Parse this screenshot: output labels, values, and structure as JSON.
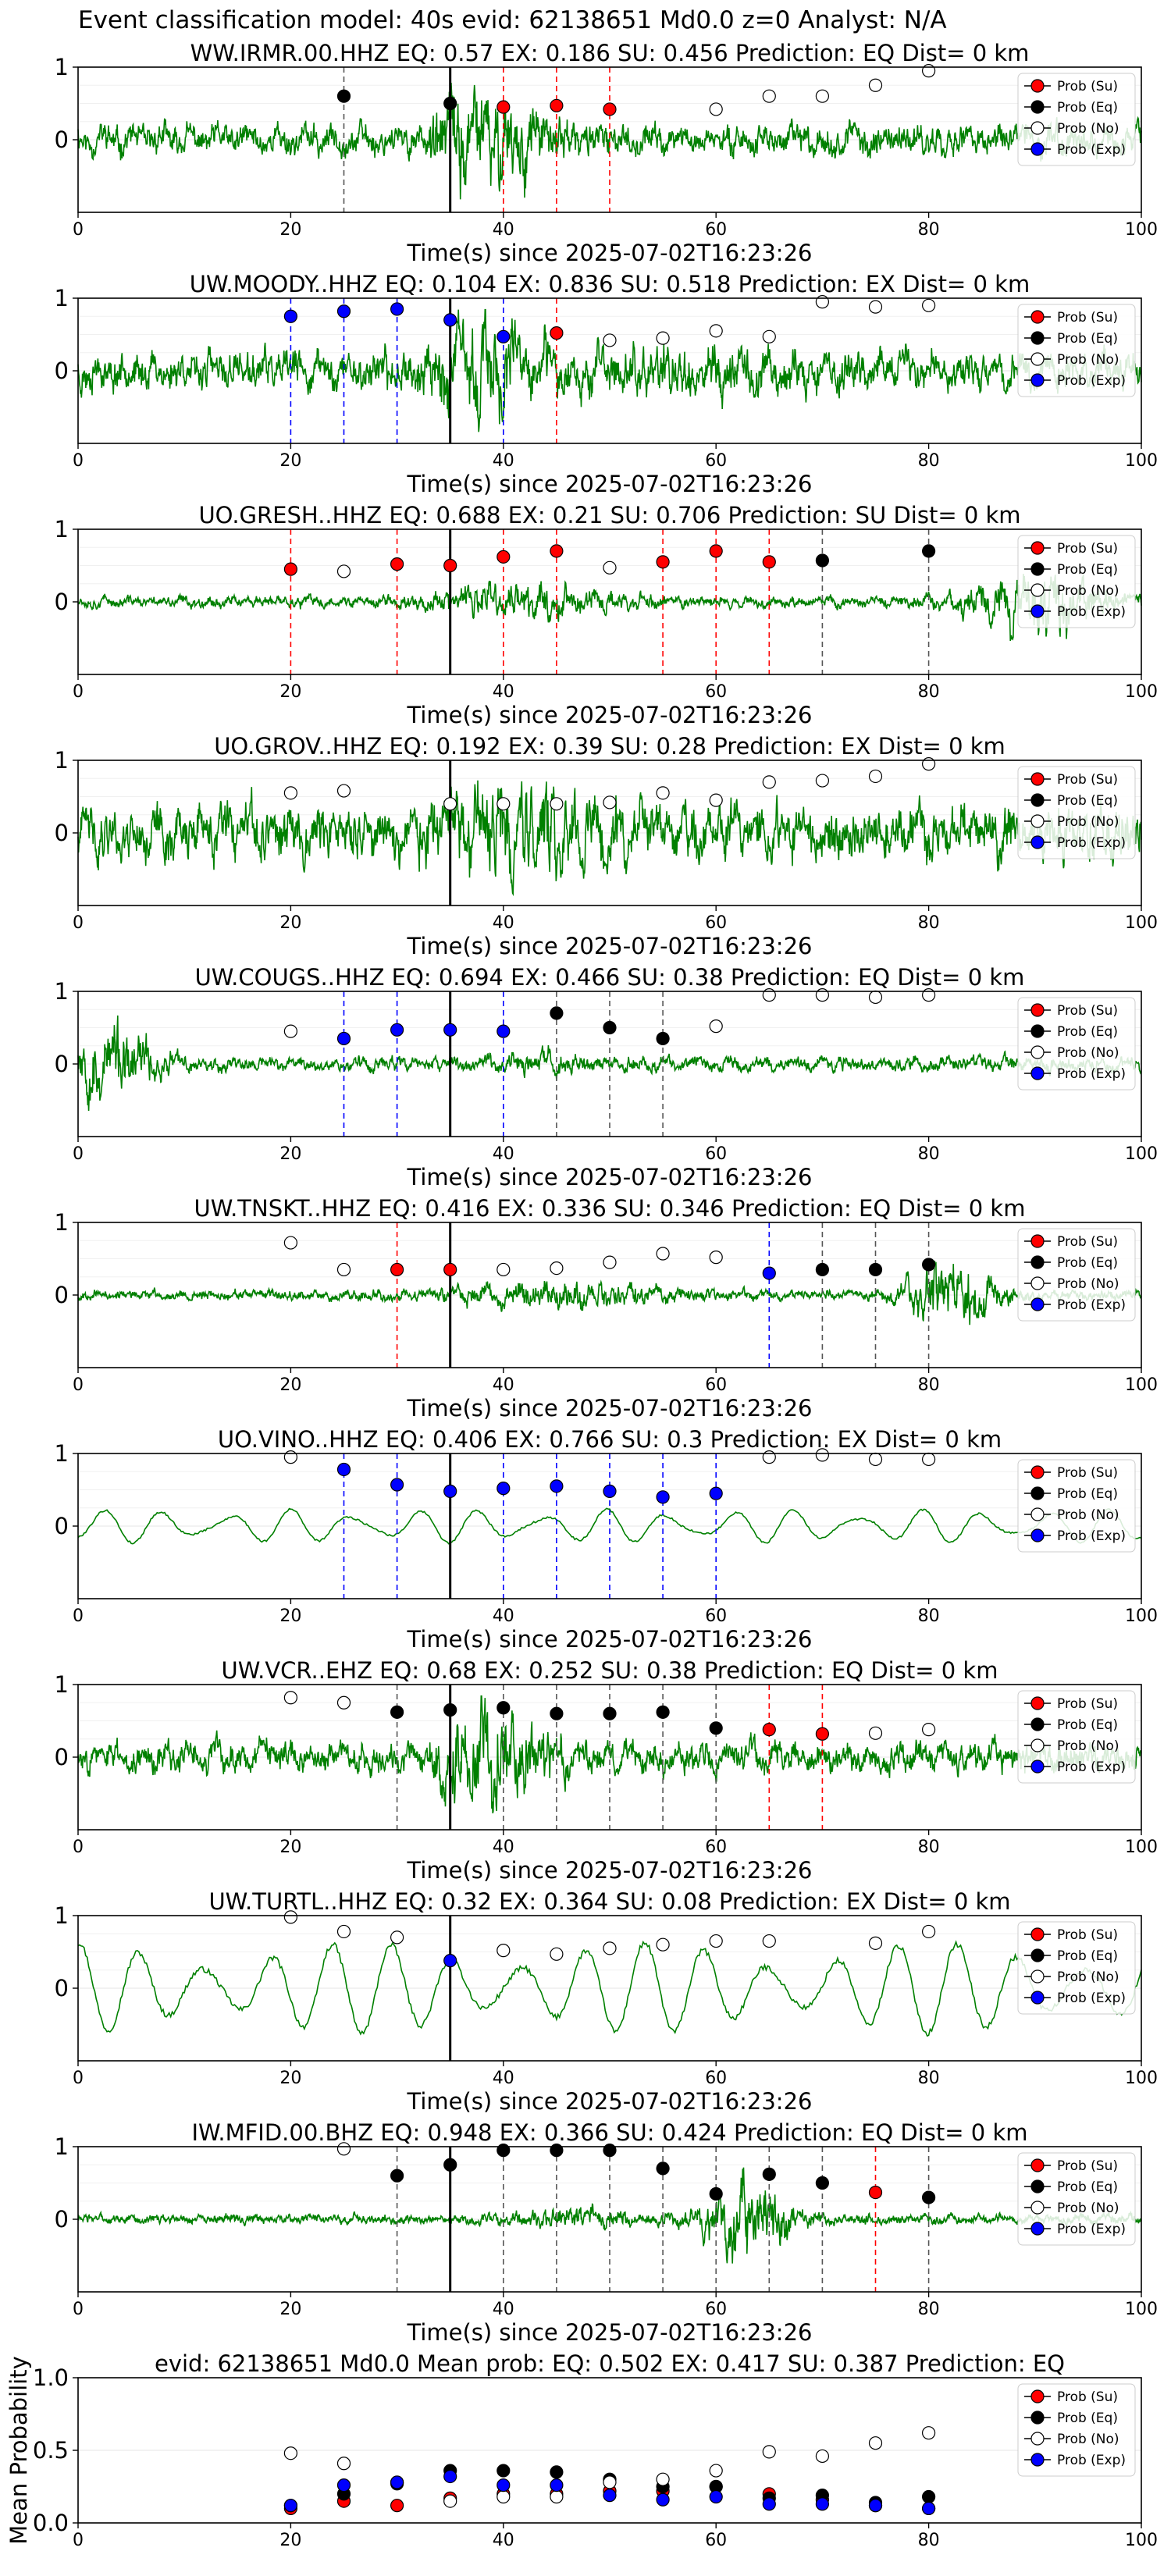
{
  "figure_title": "Event classification model: 40s evid: 62138651 Md0.0 z=0 Analyst: N/A",
  "colors": {
    "waveform": "#008000",
    "su": "#ff0000",
    "eq": "#000000",
    "no": "#ffffff",
    "exp": "#0000ff",
    "pick_line": "#000000"
  },
  "chart_data": [
    {
      "type": "line",
      "title": "WW.IRMR.00.HHZ   EQ: 0.57  EX: 0.186  SU: 0.456   Prediction: EQ    Dist= 0 km",
      "xlabel": "Time(s) since 2025-07-02T16:23:26",
      "xlim": [
        0,
        100
      ],
      "ylim": [
        -1,
        1
      ],
      "x_ticks": [
        "0",
        "20",
        "40",
        "60",
        "80",
        "100"
      ],
      "y_ticks": [
        "0",
        "1"
      ],
      "waveform_style": "mixed",
      "seed": 11,
      "pick_time": 35,
      "points": [
        {
          "t": 25,
          "p": 0.6,
          "cls": "eq"
        },
        {
          "t": 35,
          "p": 0.5,
          "cls": "eq"
        },
        {
          "t": 40,
          "p": 0.45,
          "cls": "su"
        },
        {
          "t": 45,
          "p": 0.47,
          "cls": "su"
        },
        {
          "t": 50,
          "p": 0.42,
          "cls": "su"
        },
        {
          "t": 60,
          "p": 0.42,
          "cls": "no"
        },
        {
          "t": 65,
          "p": 0.6,
          "cls": "no"
        },
        {
          "t": 70,
          "p": 0.6,
          "cls": "no"
        },
        {
          "t": 75,
          "p": 0.75,
          "cls": "no"
        },
        {
          "t": 80,
          "p": 0.95,
          "cls": "no"
        }
      ],
      "legend": [
        "Prob (Su)",
        "Prob (Eq)",
        "Prob (No)",
        "Prob (Exp)"
      ]
    },
    {
      "type": "line",
      "title": "UW.MOODY..HHZ   EQ: 0.104  EX: 0.836  SU: 0.518   Prediction: EX    Dist= 0 km",
      "xlabel": "Time(s) since 2025-07-02T16:23:26",
      "xlim": [
        0,
        100
      ],
      "ylim": [
        -1,
        1
      ],
      "x_ticks": [
        "0",
        "20",
        "40",
        "60",
        "80",
        "100"
      ],
      "y_ticks": [
        "0",
        "1"
      ],
      "waveform_style": "low",
      "seed": 23,
      "pick_time": 35,
      "points": [
        {
          "t": 20,
          "p": 0.75,
          "cls": "exp"
        },
        {
          "t": 25,
          "p": 0.82,
          "cls": "exp"
        },
        {
          "t": 30,
          "p": 0.85,
          "cls": "exp"
        },
        {
          "t": 35,
          "p": 0.7,
          "cls": "exp"
        },
        {
          "t": 40,
          "p": 0.47,
          "cls": "exp"
        },
        {
          "t": 45,
          "p": 0.52,
          "cls": "su"
        },
        {
          "t": 50,
          "p": 0.42,
          "cls": "no"
        },
        {
          "t": 55,
          "p": 0.45,
          "cls": "no"
        },
        {
          "t": 60,
          "p": 0.55,
          "cls": "no"
        },
        {
          "t": 65,
          "p": 0.47,
          "cls": "no"
        },
        {
          "t": 70,
          "p": 0.95,
          "cls": "no"
        },
        {
          "t": 75,
          "p": 0.88,
          "cls": "no"
        },
        {
          "t": 80,
          "p": 0.9,
          "cls": "no"
        }
      ],
      "legend": [
        "Prob (Su)",
        "Prob (Eq)",
        "Prob (No)",
        "Prob (Exp)"
      ]
    },
    {
      "type": "line",
      "title": "UO.GRESH..HHZ   EQ: 0.688  EX: 0.21  SU: 0.706   Prediction: SU    Dist= 0 km",
      "xlabel": "Time(s) since 2025-07-02T16:23:26",
      "xlim": [
        0,
        100
      ],
      "ylim": [
        -1,
        1
      ],
      "x_ticks": [
        "0",
        "20",
        "40",
        "60",
        "80",
        "100"
      ],
      "y_ticks": [
        "0",
        "1"
      ],
      "waveform_style": "noise",
      "seed": 37,
      "pick_time": 35,
      "points": [
        {
          "t": 20,
          "p": 0.45,
          "cls": "su"
        },
        {
          "t": 25,
          "p": 0.42,
          "cls": "no"
        },
        {
          "t": 30,
          "p": 0.52,
          "cls": "su"
        },
        {
          "t": 35,
          "p": 0.5,
          "cls": "su"
        },
        {
          "t": 40,
          "p": 0.62,
          "cls": "su"
        },
        {
          "t": 45,
          "p": 0.7,
          "cls": "su"
        },
        {
          "t": 50,
          "p": 0.47,
          "cls": "no"
        },
        {
          "t": 55,
          "p": 0.55,
          "cls": "su"
        },
        {
          "t": 60,
          "p": 0.7,
          "cls": "su"
        },
        {
          "t": 65,
          "p": 0.55,
          "cls": "su"
        },
        {
          "t": 70,
          "p": 0.57,
          "cls": "eq"
        },
        {
          "t": 80,
          "p": 0.7,
          "cls": "eq"
        }
      ],
      "legend": [
        "Prob (Su)",
        "Prob (Eq)",
        "Prob (No)",
        "Prob (Exp)"
      ]
    },
    {
      "type": "line",
      "title": "UO.GROV..HHZ   EQ: 0.192  EX: 0.39  SU: 0.28   Prediction: EX    Dist= 0 km",
      "xlabel": "Time(s) since 2025-07-02T16:23:26",
      "xlim": [
        0,
        100
      ],
      "ylim": [
        -1,
        1
      ],
      "x_ticks": [
        "0",
        "20",
        "40",
        "60",
        "80",
        "100"
      ],
      "y_ticks": [
        "0",
        "1"
      ],
      "waveform_style": "dense",
      "seed": 41,
      "pick_time": 35,
      "points": [
        {
          "t": 20,
          "p": 0.55,
          "cls": "no"
        },
        {
          "t": 25,
          "p": 0.58,
          "cls": "no"
        },
        {
          "t": 35,
          "p": 0.4,
          "cls": "no"
        },
        {
          "t": 40,
          "p": 0.4,
          "cls": "no"
        },
        {
          "t": 45,
          "p": 0.4,
          "cls": "no"
        },
        {
          "t": 50,
          "p": 0.42,
          "cls": "no"
        },
        {
          "t": 55,
          "p": 0.55,
          "cls": "no"
        },
        {
          "t": 60,
          "p": 0.45,
          "cls": "no"
        },
        {
          "t": 65,
          "p": 0.7,
          "cls": "no"
        },
        {
          "t": 70,
          "p": 0.72,
          "cls": "no"
        },
        {
          "t": 75,
          "p": 0.78,
          "cls": "no"
        },
        {
          "t": 80,
          "p": 0.95,
          "cls": "no"
        }
      ],
      "legend": [
        "Prob (Su)",
        "Prob (Eq)",
        "Prob (No)",
        "Prob (Exp)"
      ]
    },
    {
      "type": "line",
      "title": "UW.COUGS..HHZ   EQ: 0.694  EX: 0.466  SU: 0.38   Prediction: EQ    Dist= 0 km",
      "xlabel": "Time(s) since 2025-07-02T16:23:26",
      "xlim": [
        0,
        100
      ],
      "ylim": [
        -1,
        1
      ],
      "x_ticks": [
        "0",
        "20",
        "40",
        "60",
        "80",
        "100"
      ],
      "y_ticks": [
        "0",
        "1"
      ],
      "waveform_style": "early",
      "seed": 53,
      "pick_time": 35,
      "points": [
        {
          "t": 20,
          "p": 0.45,
          "cls": "no"
        },
        {
          "t": 25,
          "p": 0.35,
          "cls": "exp"
        },
        {
          "t": 30,
          "p": 0.47,
          "cls": "exp"
        },
        {
          "t": 35,
          "p": 0.47,
          "cls": "exp"
        },
        {
          "t": 40,
          "p": 0.45,
          "cls": "exp"
        },
        {
          "t": 45,
          "p": 0.7,
          "cls": "eq"
        },
        {
          "t": 50,
          "p": 0.5,
          "cls": "eq"
        },
        {
          "t": 55,
          "p": 0.35,
          "cls": "eq"
        },
        {
          "t": 60,
          "p": 0.52,
          "cls": "no"
        },
        {
          "t": 65,
          "p": 0.95,
          "cls": "no"
        },
        {
          "t": 70,
          "p": 0.95,
          "cls": "no"
        },
        {
          "t": 75,
          "p": 0.92,
          "cls": "no"
        },
        {
          "t": 80,
          "p": 0.95,
          "cls": "no"
        }
      ],
      "legend": [
        "Prob (Su)",
        "Prob (Eq)",
        "Prob (No)",
        "Prob (Exp)"
      ]
    },
    {
      "type": "line",
      "title": "UW.TNSKT..HHZ   EQ: 0.416  EX: 0.336  SU: 0.346   Prediction: EQ    Dist= 0 km",
      "xlabel": "Time(s) since 2025-07-02T16:23:26",
      "xlim": [
        0,
        100
      ],
      "ylim": [
        -1,
        1
      ],
      "x_ticks": [
        "0",
        "20",
        "40",
        "60",
        "80",
        "100"
      ],
      "y_ticks": [
        "0",
        "1"
      ],
      "waveform_style": "noise-late",
      "seed": 67,
      "pick_time": 35,
      "points": [
        {
          "t": 20,
          "p": 0.72,
          "cls": "no"
        },
        {
          "t": 25,
          "p": 0.35,
          "cls": "no"
        },
        {
          "t": 30,
          "p": 0.35,
          "cls": "su"
        },
        {
          "t": 35,
          "p": 0.35,
          "cls": "su"
        },
        {
          "t": 40,
          "p": 0.35,
          "cls": "no"
        },
        {
          "t": 45,
          "p": 0.37,
          "cls": "no"
        },
        {
          "t": 50,
          "p": 0.45,
          "cls": "no"
        },
        {
          "t": 55,
          "p": 0.57,
          "cls": "no"
        },
        {
          "t": 60,
          "p": 0.52,
          "cls": "no"
        },
        {
          "t": 65,
          "p": 0.3,
          "cls": "exp"
        },
        {
          "t": 70,
          "p": 0.35,
          "cls": "eq"
        },
        {
          "t": 75,
          "p": 0.35,
          "cls": "eq"
        },
        {
          "t": 80,
          "p": 0.42,
          "cls": "eq"
        }
      ],
      "legend": [
        "Prob (Su)",
        "Prob (Eq)",
        "Prob (No)",
        "Prob (Exp)"
      ]
    },
    {
      "type": "line",
      "title": "UO.VINO..HHZ   EQ: 0.406  EX: 0.766  SU: 0.3   Prediction: EX    Dist= 0 km",
      "xlabel": "Time(s) since 2025-07-02T16:23:26",
      "xlim": [
        0,
        100
      ],
      "ylim": [
        -1,
        1
      ],
      "x_ticks": [
        "0",
        "20",
        "40",
        "60",
        "80",
        "100"
      ],
      "y_ticks": [
        "0",
        "1"
      ],
      "waveform_style": "smooth",
      "seed": 79,
      "pick_time": 35,
      "points": [
        {
          "t": 20,
          "p": 0.95,
          "cls": "no"
        },
        {
          "t": 25,
          "p": 0.78,
          "cls": "exp"
        },
        {
          "t": 30,
          "p": 0.57,
          "cls": "exp"
        },
        {
          "t": 35,
          "p": 0.48,
          "cls": "exp"
        },
        {
          "t": 40,
          "p": 0.52,
          "cls": "exp"
        },
        {
          "t": 45,
          "p": 0.55,
          "cls": "exp"
        },
        {
          "t": 50,
          "p": 0.48,
          "cls": "exp"
        },
        {
          "t": 55,
          "p": 0.4,
          "cls": "exp"
        },
        {
          "t": 60,
          "p": 0.45,
          "cls": "exp"
        },
        {
          "t": 65,
          "p": 0.95,
          "cls": "no"
        },
        {
          "t": 70,
          "p": 0.98,
          "cls": "no"
        },
        {
          "t": 75,
          "p": 0.92,
          "cls": "no"
        },
        {
          "t": 80,
          "p": 0.92,
          "cls": "no"
        }
      ],
      "legend": [
        "Prob (Su)",
        "Prob (Eq)",
        "Prob (No)",
        "Prob (Exp)"
      ]
    },
    {
      "type": "line",
      "title": "UW.VCR..EHZ   EQ: 0.68  EX: 0.252  SU: 0.38   Prediction: EQ    Dist= 0 km",
      "xlabel": "Time(s) since 2025-07-02T16:23:26",
      "xlim": [
        0,
        100
      ],
      "ylim": [
        -1,
        1
      ],
      "x_ticks": [
        "0",
        "20",
        "40",
        "60",
        "80",
        "100"
      ],
      "y_ticks": [
        "0",
        "1"
      ],
      "waveform_style": "mixed",
      "seed": 83,
      "pick_time": 35,
      "points": [
        {
          "t": 20,
          "p": 0.82,
          "cls": "no"
        },
        {
          "t": 25,
          "p": 0.75,
          "cls": "no"
        },
        {
          "t": 30,
          "p": 0.62,
          "cls": "eq"
        },
        {
          "t": 35,
          "p": 0.65,
          "cls": "eq"
        },
        {
          "t": 40,
          "p": 0.68,
          "cls": "eq"
        },
        {
          "t": 45,
          "p": 0.6,
          "cls": "eq"
        },
        {
          "t": 50,
          "p": 0.6,
          "cls": "eq"
        },
        {
          "t": 55,
          "p": 0.62,
          "cls": "eq"
        },
        {
          "t": 60,
          "p": 0.4,
          "cls": "eq"
        },
        {
          "t": 65,
          "p": 0.38,
          "cls": "su"
        },
        {
          "t": 70,
          "p": 0.32,
          "cls": "su"
        },
        {
          "t": 75,
          "p": 0.33,
          "cls": "no"
        },
        {
          "t": 80,
          "p": 0.38,
          "cls": "no"
        }
      ],
      "legend": [
        "Prob (Su)",
        "Prob (Eq)",
        "Prob (No)",
        "Prob (Exp)"
      ]
    },
    {
      "type": "line",
      "title": "UW.TURTL..HHZ   EQ: 0.32  EX: 0.364  SU: 0.08   Prediction: EX    Dist= 0 km",
      "xlabel": "Time(s) since 2025-07-02T16:23:26",
      "xlim": [
        0,
        100
      ],
      "ylim": [
        -1,
        1
      ],
      "x_ticks": [
        "0",
        "20",
        "40",
        "60",
        "80",
        "100"
      ],
      "y_ticks": [
        "0",
        "1"
      ],
      "waveform_style": "large-smooth",
      "seed": 97,
      "pick_time": 35,
      "points": [
        {
          "t": 20,
          "p": 0.98,
          "cls": "no"
        },
        {
          "t": 25,
          "p": 0.78,
          "cls": "no"
        },
        {
          "t": 30,
          "p": 0.7,
          "cls": "no"
        },
        {
          "t": 35,
          "p": 0.38,
          "cls": "exp"
        },
        {
          "t": 40,
          "p": 0.52,
          "cls": "no"
        },
        {
          "t": 45,
          "p": 0.47,
          "cls": "no"
        },
        {
          "t": 50,
          "p": 0.55,
          "cls": "no"
        },
        {
          "t": 55,
          "p": 0.6,
          "cls": "no"
        },
        {
          "t": 60,
          "p": 0.65,
          "cls": "no"
        },
        {
          "t": 65,
          "p": 0.65,
          "cls": "no"
        },
        {
          "t": 75,
          "p": 0.62,
          "cls": "no"
        },
        {
          "t": 80,
          "p": 0.78,
          "cls": "no"
        }
      ],
      "legend": [
        "Prob (Su)",
        "Prob (Eq)",
        "Prob (No)",
        "Prob (Exp)"
      ]
    },
    {
      "type": "line",
      "title": "IW.MFID.00.BHZ   EQ: 0.948  EX: 0.366  SU: 0.424   Prediction: EQ    Dist= 0 km",
      "xlabel": "Time(s) since 2025-07-02T16:23:26",
      "xlim": [
        0,
        100
      ],
      "ylim": [
        -1,
        1
      ],
      "x_ticks": [
        "0",
        "20",
        "40",
        "60",
        "80",
        "100"
      ],
      "y_ticks": [
        "0",
        "1"
      ],
      "waveform_style": "late-burst",
      "seed": 103,
      "pick_time": 35,
      "points": [
        {
          "t": 25,
          "p": 0.97,
          "cls": "no"
        },
        {
          "t": 30,
          "p": 0.6,
          "cls": "eq"
        },
        {
          "t": 35,
          "p": 0.75,
          "cls": "eq"
        },
        {
          "t": 40,
          "p": 0.95,
          "cls": "eq"
        },
        {
          "t": 45,
          "p": 0.95,
          "cls": "eq"
        },
        {
          "t": 50,
          "p": 0.95,
          "cls": "eq"
        },
        {
          "t": 55,
          "p": 0.7,
          "cls": "eq"
        },
        {
          "t": 60,
          "p": 0.35,
          "cls": "eq"
        },
        {
          "t": 65,
          "p": 0.62,
          "cls": "eq"
        },
        {
          "t": 70,
          "p": 0.5,
          "cls": "eq"
        },
        {
          "t": 75,
          "p": 0.37,
          "cls": "su"
        },
        {
          "t": 80,
          "p": 0.3,
          "cls": "eq"
        }
      ],
      "legend": [
        "Prob (Su)",
        "Prob (Eq)",
        "Prob (No)",
        "Prob (Exp)"
      ]
    },
    {
      "type": "scatter",
      "title": "evid: 62138651  Md0.0   Mean prob:   EQ: 0.502  EX: 0.417  SU: 0.387   Prediction: EQ",
      "ylabel": "Mean Probability",
      "xlim": [
        0,
        100
      ],
      "ylim": [
        0,
        1
      ],
      "x_ticks": [
        "0",
        "20",
        "40",
        "60",
        "80",
        "100"
      ],
      "y_ticks": [
        "0.0",
        "0.5",
        "1.0"
      ],
      "x": [
        20,
        25,
        30,
        35,
        40,
        45,
        50,
        55,
        60,
        65,
        70,
        75,
        80
      ],
      "series": [
        {
          "name": "Prob (Su)",
          "cls": "su",
          "values": [
            0.1,
            0.15,
            0.12,
            0.17,
            0.2,
            0.2,
            0.22,
            0.22,
            0.25,
            0.2,
            0.16,
            0.12,
            0.1
          ]
        },
        {
          "name": "Prob (Eq)",
          "cls": "eq",
          "values": [
            0.12,
            0.2,
            0.27,
            0.36,
            0.36,
            0.35,
            0.3,
            0.25,
            0.25,
            0.17,
            0.19,
            0.14,
            0.18
          ]
        },
        {
          "name": "Prob (No)",
          "cls": "no",
          "values": [
            0.48,
            0.41,
            0.28,
            0.15,
            0.18,
            0.18,
            0.28,
            0.3,
            0.36,
            0.49,
            0.46,
            0.55,
            0.62
          ]
        },
        {
          "name": "Prob (Exp)",
          "cls": "exp",
          "values": [
            0.12,
            0.26,
            0.28,
            0.32,
            0.26,
            0.26,
            0.19,
            0.16,
            0.18,
            0.13,
            0.13,
            0.12,
            0.1
          ]
        }
      ],
      "legend": [
        "Prob (Su)",
        "Prob (Eq)",
        "Prob (No)",
        "Prob (Exp)"
      ]
    }
  ]
}
